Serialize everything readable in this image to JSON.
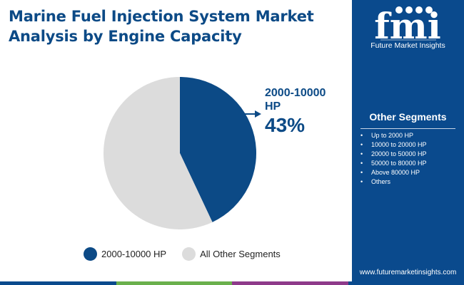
{
  "title": {
    "line1": "Marine Fuel Injection System Market",
    "line2": "Analysis by Engine Capacity"
  },
  "colors": {
    "highlight": "#0c4a86",
    "others": "#dcdcdc",
    "sidebar": "#0a4a8d",
    "accent_bar": [
      "#0a4a8d",
      "#6ab04c",
      "#8e3a8a",
      "#0a4a8d"
    ]
  },
  "chart_data": {
    "type": "pie",
    "slices": [
      {
        "label": "2000-10000 HP",
        "value": 43,
        "color": "#0c4a86"
      },
      {
        "label": "All Other Segments",
        "value": 57,
        "color": "#dcdcdc"
      }
    ],
    "callout": {
      "category": "2000-10000 HP",
      "value_text": "43%"
    },
    "legend": {
      "placement": "bottom",
      "items": [
        "2000-10000 HP",
        "All Other Segments"
      ]
    }
  },
  "sidebar": {
    "logo_text": "fmi",
    "logo_caption": "Future Market Insights",
    "segments_title": "Other Segments",
    "segments": [
      "Up to 2000 HP",
      "10000 to 20000 HP",
      "20000 to 50000 HP",
      "50000 to 80000 HP",
      "Above 80000 HP",
      "Others"
    ],
    "website": "www.futuremarketinsights.com"
  }
}
